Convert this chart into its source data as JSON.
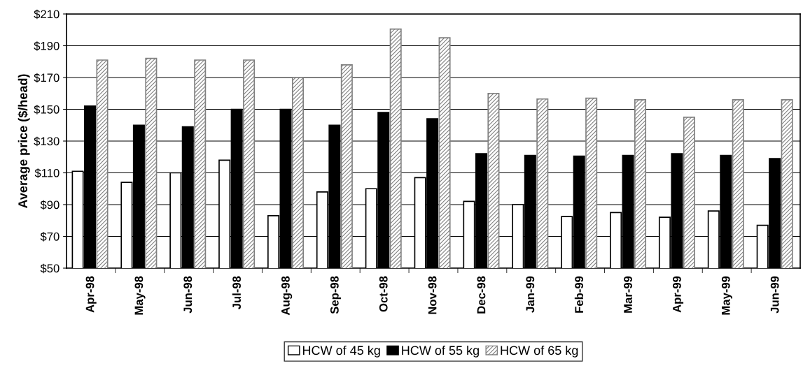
{
  "chart_data": {
    "type": "bar",
    "ylabel": "Average price ($/head)",
    "categories": [
      "Apr-98",
      "May-98",
      "Jun-98",
      "Jul-98",
      "Aug-98",
      "Sep-98",
      "Oct-98",
      "Nov-98",
      "Dec-98",
      "Jan-99",
      "Feb-99",
      "Mar-99",
      "Apr-99",
      "May-99",
      "Jun-99"
    ],
    "series": [
      {
        "name": "HCW of 45 kg",
        "color": "#ffffff",
        "values": [
          111,
          104,
          110,
          118,
          83,
          98,
          100,
          107,
          92,
          90,
          82.5,
          85,
          82,
          86,
          77
        ]
      },
      {
        "name": "HCW of 55 kg",
        "color": "#000000",
        "values": [
          152,
          140,
          139,
          150,
          150,
          140,
          148,
          144,
          122,
          121,
          120.5,
          121,
          122,
          121,
          119
        ]
      },
      {
        "name": "HCW of 65 kg",
        "color": "#808080",
        "values": [
          181,
          182,
          181,
          181,
          170,
          178,
          200.5,
          195,
          160,
          156.5,
          157,
          156,
          145,
          156,
          156
        ]
      }
    ],
    "ylim": [
      50,
      210
    ],
    "yticks": [
      {
        "value": 50,
        "label": "$50"
      },
      {
        "value": 70,
        "label": "$70"
      },
      {
        "value": 90,
        "label": "$90"
      },
      {
        "value": 110,
        "label": "$110"
      },
      {
        "value": 130,
        "label": "$130"
      },
      {
        "value": 150,
        "label": "$150"
      },
      {
        "value": 170,
        "label": "$170"
      },
      {
        "value": 190,
        "label": "$190"
      },
      {
        "value": 210,
        "label": "$210"
      }
    ],
    "grid": "y",
    "legend": "bottom"
  }
}
